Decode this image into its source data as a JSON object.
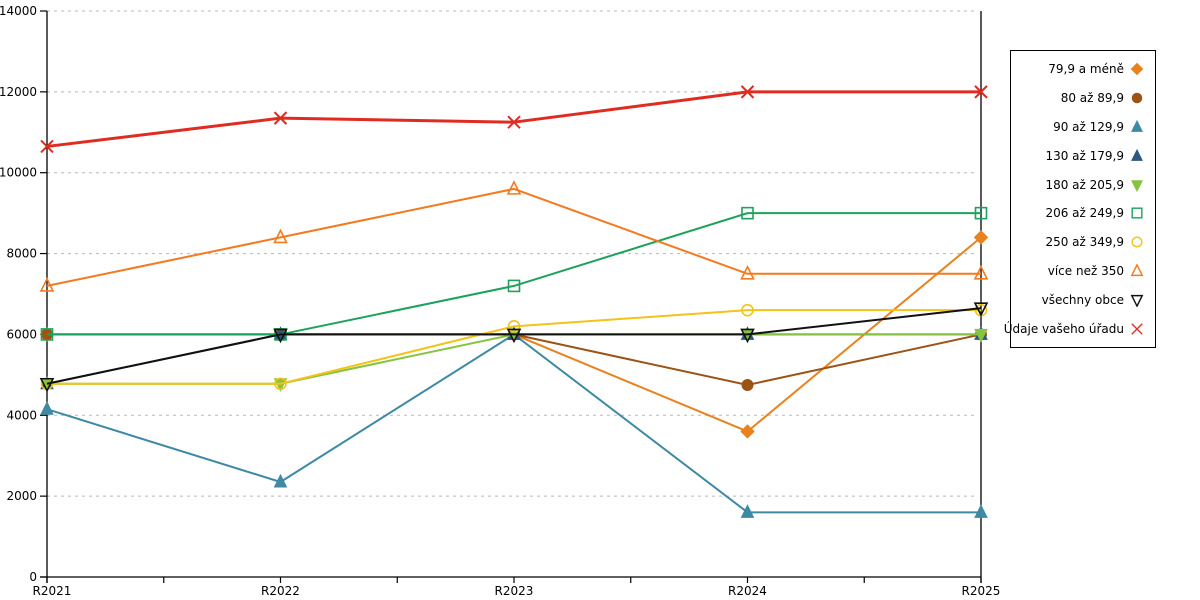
{
  "chart_data": {
    "type": "line",
    "categories": [
      "R2021",
      "R2022",
      "R2023",
      "R2024",
      "R2025"
    ],
    "y_axis": {
      "min": 0,
      "max": 14000,
      "tick_step": 2000,
      "tick_labels": [
        "0",
        "2000",
        "4000",
        "6000",
        "8000",
        "10000",
        "12000",
        "14000"
      ]
    },
    "grid": "horizontal-dashed",
    "grid_color": "#b8b8b8",
    "legend_position": "right",
    "series": [
      {
        "name": "79,9 a méně",
        "color": "#e8821e",
        "marker": "diamond",
        "fill": "filled",
        "values": [
          6000,
          6000,
          6000,
          3600,
          8400
        ]
      },
      {
        "name": "80 až 89,9",
        "color": "#9c5316",
        "marker": "circle",
        "fill": "filled",
        "values": [
          6000,
          6000,
          6000,
          4750,
          6000
        ]
      },
      {
        "name": "90 až 129,9",
        "color": "#3e89a3",
        "marker": "triangle-up",
        "fill": "filled",
        "values": [
          4150,
          2350,
          6000,
          1600,
          1600
        ]
      },
      {
        "name": "130 až 179,9",
        "color": "#2d587f",
        "marker": "triangle-up",
        "fill": "filled",
        "values": [
          4780,
          6000,
          6000,
          6000,
          6000
        ]
      },
      {
        "name": "180 až 205,9",
        "color": "#86c440",
        "marker": "triangle-down",
        "fill": "filled",
        "values": [
          4780,
          4780,
          6000,
          6000,
          6000
        ]
      },
      {
        "name": "206 až 249,9",
        "color": "#1ca25c",
        "marker": "square",
        "fill": "open",
        "values": [
          6000,
          6000,
          7200,
          9000,
          9000
        ]
      },
      {
        "name": "250 až 349,9",
        "color": "#f2c318",
        "marker": "circle",
        "fill": "open",
        "values": [
          4780,
          4780,
          6200,
          6600,
          6600
        ]
      },
      {
        "name": "více než 350",
        "color": "#f4791f",
        "marker": "triangle-up",
        "fill": "open",
        "values": [
          7200,
          8400,
          9600,
          7500,
          7500
        ]
      },
      {
        "name": "všechny obce",
        "color": "#111111",
        "marker": "triangle-down",
        "fill": "open",
        "values": [
          4780,
          6000,
          6000,
          6000,
          6650
        ]
      },
      {
        "name": "Údaje vašeho úřadu",
        "color": "#e02b20",
        "marker": "x",
        "fill": "open",
        "values": [
          10650,
          11350,
          11250,
          12000,
          12000
        ],
        "line_width": 3
      }
    ]
  }
}
